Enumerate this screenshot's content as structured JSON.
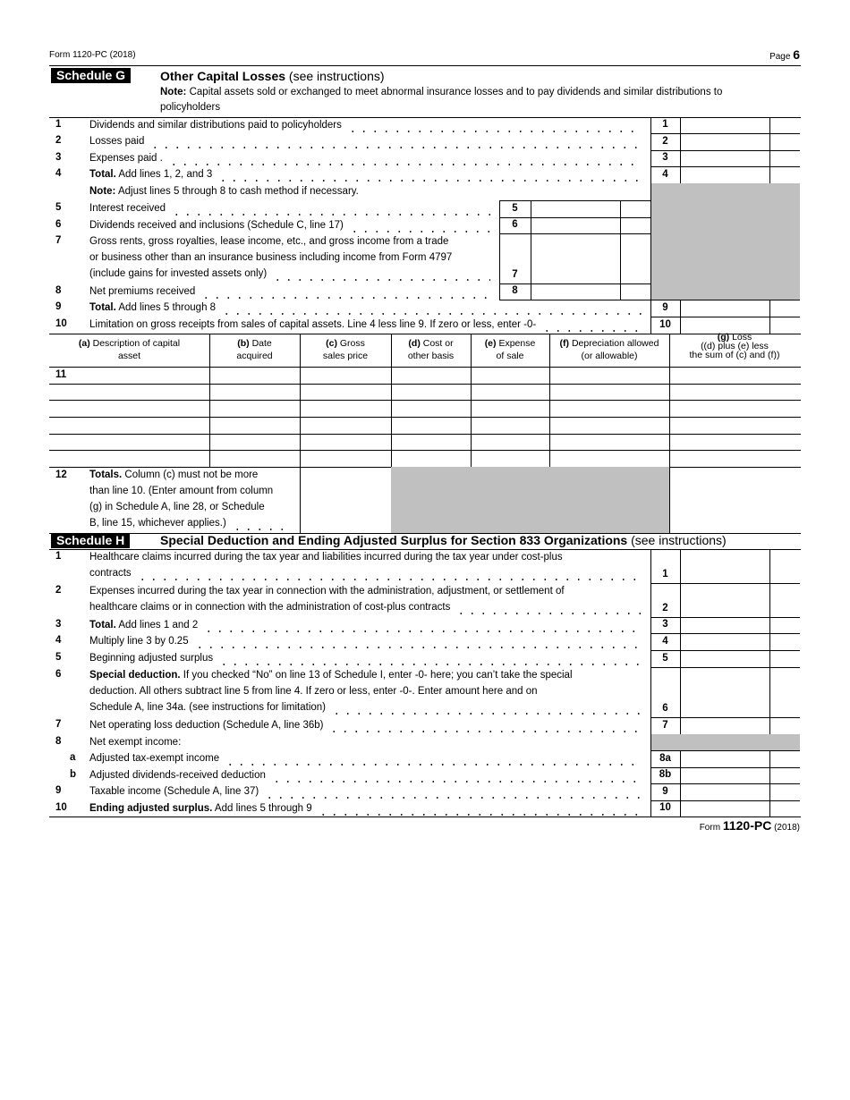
{
  "header": {
    "form_id": "Form 1120-PC (2018)",
    "page_label": "Page",
    "page_number": "6"
  },
  "schedule_g": {
    "badge": "Schedule G",
    "title_bold": "Other Capital Losses",
    "title_rest": " (see instructions)",
    "note_bold": "Note:",
    "note_lines": [
      "Capital assets sold or exchanged to meet abnormal insurance losses and to pay dividends and similar distributions to",
      "policyholders"
    ],
    "adjust_note_bold": "Note:",
    "adjust_note": " Adjust lines 5 through 8 to cash method if necessary.",
    "lines": [
      {
        "num": "1",
        "bold": "",
        "lines": [
          "Dividends and similar distributions paid to policyholders"
        ],
        "box": "1"
      },
      {
        "num": "2",
        "bold": "",
        "lines": [
          "Losses paid"
        ],
        "box": "2"
      },
      {
        "num": "3",
        "bold": "",
        "lines": [
          "Expenses paid ."
        ],
        "box": "3"
      },
      {
        "num": "4",
        "bold": "Total.",
        "lines": [
          " Add lines 1, 2, and 3"
        ],
        "box": "4"
      },
      {
        "num": "5",
        "bold": "",
        "lines": [
          "Interest received"
        ],
        "box": "5"
      },
      {
        "num": "6",
        "bold": "",
        "lines": [
          "Dividends received and inclusions (Schedule C, line 17)"
        ],
        "box": "6"
      },
      {
        "num": "7",
        "bold": "",
        "lines": [
          "Gross rents, gross royalties, lease income, etc., and gross income from a trade",
          "or business other than an insurance business including income from Form 4797",
          "(include gains for invested assets only)"
        ],
        "box": "7"
      },
      {
        "num": "8",
        "bold": "",
        "lines": [
          "Net premiums received"
        ],
        "box": "8"
      },
      {
        "num": "9",
        "bold": "Total.",
        "lines": [
          " Add lines 5 through 8"
        ],
        "box": "9"
      },
      {
        "num": "10",
        "bold": "",
        "lines": [
          "Limitation on gross receipts from sales of capital assets. Line 4 less line 9. If zero or less, enter -0-"
        ],
        "box": "10"
      }
    ],
    "table": {
      "columns": [
        {
          "letter": "(a)",
          "lines": [
            " Description of capital",
            "asset"
          ]
        },
        {
          "letter": "(b)",
          "lines": [
            " Date",
            "acquired"
          ]
        },
        {
          "letter": "(c)",
          "lines": [
            " Gross",
            "sales price"
          ]
        },
        {
          "letter": "(d)",
          "lines": [
            " Cost or",
            "other basis"
          ]
        },
        {
          "letter": "(e)",
          "lines": [
            " Expense",
            "of sale"
          ]
        },
        {
          "letter": "(f)",
          "lines": [
            " Depreciation allowed",
            "(or allowable)"
          ]
        },
        {
          "letter": "(g)",
          "lines": [
            " Loss",
            "((d) plus (e) less",
            "the sum of (c) and (f))"
          ]
        }
      ],
      "line11_num": "11",
      "line12_num": "12",
      "line12_bold": "Totals.",
      "line12_lines": [
        " Column (c) must not be more",
        "than line 10. (Enter amount from column",
        "(g) in Schedule A, line 28, or Schedule",
        "B, line 15, whichever applies.)"
      ]
    }
  },
  "schedule_h": {
    "badge": "Schedule H",
    "title_bold": "Special Deduction and Ending Adjusted Surplus for Section 833 Organizations",
    "title_rest": " (see instructions)",
    "lines": [
      {
        "num": "1",
        "bold": "",
        "lines": [
          "Healthcare claims incurred during the tax year and liabilities incurred during the tax year under cost-plus",
          "contracts"
        ],
        "box": "1"
      },
      {
        "num": "2",
        "bold": "",
        "lines": [
          "Expenses incurred during the tax year in connection with the administration, adjustment, or settlement of",
          "healthcare claims or in connection with the administration of cost-plus contracts"
        ],
        "box": "2"
      },
      {
        "num": "3",
        "bold": "Total.",
        "lines": [
          " Add lines 1 and 2"
        ],
        "box": "3"
      },
      {
        "num": "4",
        "bold": "",
        "lines": [
          "Multiply line 3 by 0.25"
        ],
        "box": "4"
      },
      {
        "num": "5",
        "bold": "",
        "lines": [
          "Beginning adjusted surplus"
        ],
        "box": "5"
      },
      {
        "num": "6",
        "bold": "Special deduction.",
        "lines": [
          " If you checked “No” on line 13 of Schedule I, enter -0- here; you can’t take the special",
          "deduction. All others subtract line 5 from line 4. If zero or less, enter -0-. Enter amount here and on",
          "Schedule A, line 34a. (see instructions for limitation)"
        ],
        "box": "6"
      },
      {
        "num": "7",
        "bold": "",
        "lines": [
          "Net operating loss deduction (Schedule A, line 36b)"
        ],
        "box": "7"
      },
      {
        "num": "8",
        "bold": "",
        "lines": [
          "Net exempt income:"
        ],
        "box": ""
      },
      {
        "num": "a",
        "bold": "",
        "lines": [
          "Adjusted tax-exempt income"
        ],
        "box": "8a"
      },
      {
        "num": "b",
        "bold": "",
        "lines": [
          "Adjusted dividends-received deduction"
        ],
        "box": "8b"
      },
      {
        "num": "9",
        "bold": "",
        "lines": [
          "Taxable income (Schedule A, line 37)"
        ],
        "box": "9"
      },
      {
        "num": "10",
        "bold": "Ending adjusted surplus.",
        "lines": [
          " Add lines 5 through 9"
        ],
        "box": "10"
      }
    ]
  },
  "footer": {
    "form_prefix": "Form",
    "form_name": "1120-PC",
    "year": "(2018)"
  },
  "colors": {
    "shade": "#c0c0c0",
    "badge_bg": "#000000"
  }
}
